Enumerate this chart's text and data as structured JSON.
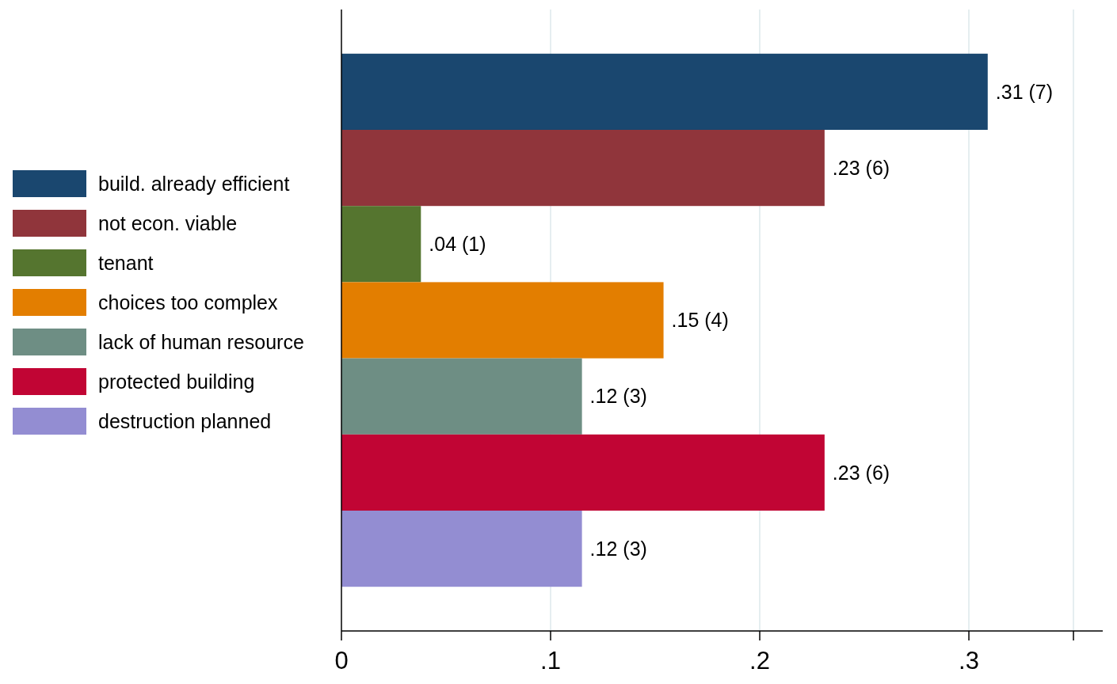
{
  "chart_data": {
    "type": "bar",
    "orientation": "horizontal",
    "categories": [
      null,
      null,
      null,
      null,
      null,
      null,
      null
    ],
    "series": [
      {
        "name": "build. already efficient",
        "color": "#1a476f",
        "values": [
          0.309,
          null,
          null,
          null,
          null,
          null,
          null
        ],
        "value_labels": [
          ".31 (7)",
          null,
          null,
          null,
          null,
          null,
          null
        ]
      },
      {
        "name": "not econ. viable",
        "color": "#90353b",
        "values": [
          null,
          0.231,
          null,
          null,
          null,
          null,
          null
        ],
        "value_labels": [
          null,
          ".23 (6)",
          null,
          null,
          null,
          null,
          null
        ]
      },
      {
        "name": "tenant",
        "color": "#55752f",
        "values": [
          null,
          null,
          0.038,
          null,
          null,
          null,
          null
        ],
        "value_labels": [
          null,
          null,
          ".04 (1)",
          null,
          null,
          null,
          null
        ]
      },
      {
        "name": "choices too complex",
        "color": "#e37e00",
        "values": [
          null,
          null,
          null,
          0.154,
          null,
          null,
          null
        ],
        "value_labels": [
          null,
          null,
          null,
          ".15 (4)",
          null,
          null,
          null
        ]
      },
      {
        "name": "lack of human resource",
        "color": "#6e8e84",
        "values": [
          null,
          null,
          null,
          null,
          0.115,
          null,
          null
        ],
        "value_labels": [
          null,
          null,
          null,
          null,
          ".12 (3)",
          null,
          null
        ]
      },
      {
        "name": "protected building",
        "color": "#c10534",
        "values": [
          null,
          null,
          null,
          null,
          null,
          0.231,
          null
        ],
        "value_labels": [
          null,
          null,
          null,
          null,
          null,
          ".23 (6)",
          null
        ]
      },
      {
        "name": "destruction planned",
        "color": "#938dd2",
        "values": [
          null,
          null,
          null,
          null,
          null,
          null,
          0.115
        ],
        "value_labels": [
          null,
          null,
          null,
          null,
          null,
          null,
          ".12 (3)"
        ]
      }
    ],
    "xlim": [
      0,
      0.364
    ],
    "xticks": [
      0,
      {
        "value": 0.1,
        "label": ".1"
      },
      {
        "value": 0.2,
        "label": ".2"
      },
      {
        "value": 0.3,
        "label": ".3"
      },
      {
        "value": 0.35,
        "label": null
      }
    ],
    "grid": "x",
    "legend": "left",
    "tick_labels": "x"
  }
}
